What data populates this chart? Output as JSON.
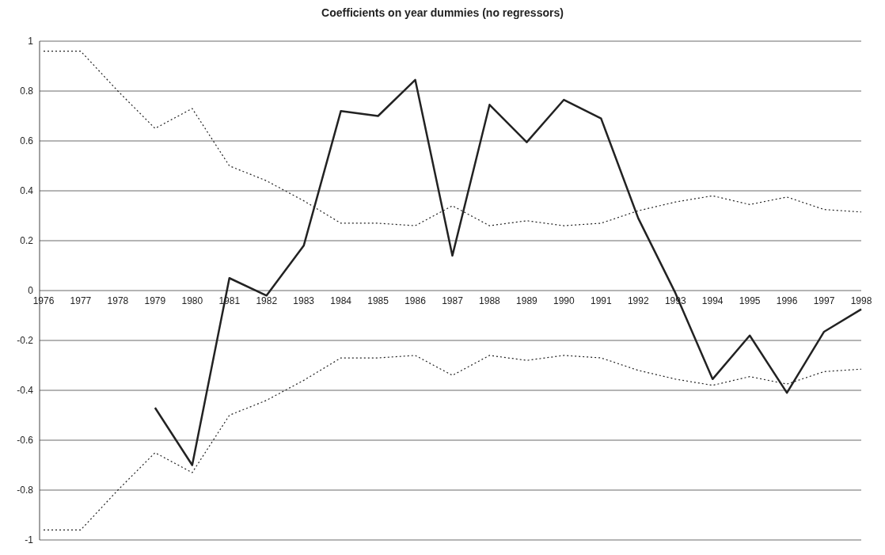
{
  "chart_data": {
    "type": "line",
    "title": "Coefficients on year dummies (no regressors)",
    "categories": [
      "1976",
      "1977",
      "1978",
      "1979",
      "1980",
      "1981",
      "1982",
      "1983",
      "1984",
      "1985",
      "1986",
      "1987",
      "1988",
      "1989",
      "1990",
      "1991",
      "1992",
      "1993",
      "1994",
      "1995",
      "1996",
      "1997",
      "1998"
    ],
    "series": [
      {
        "color": "#222222",
        "line_style": "dotted",
        "values": [
          0.96,
          0.96,
          0.8,
          0.65,
          0.73,
          0.5,
          0.44,
          0.36,
          0.27,
          0.27,
          0.26,
          0.34,
          0.26,
          0.28,
          0.26,
          0.27,
          0.32,
          0.355,
          0.38,
          0.345,
          0.375,
          0.325,
          0.315
        ]
      },
      {
        "color": "#222222",
        "line_style": "solid",
        "values": [
          null,
          null,
          null,
          -0.47,
          -0.7,
          0.05,
          -0.02,
          0.18,
          0.72,
          0.7,
          0.845,
          0.14,
          0.745,
          0.595,
          0.765,
          0.69,
          0.29,
          -0.01,
          -0.355,
          -0.18,
          -0.41,
          -0.165,
          -0.075
        ]
      },
      {
        "color": "#222222",
        "line_style": "dotted",
        "values": [
          -0.96,
          -0.96,
          -0.8,
          -0.65,
          -0.73,
          -0.5,
          -0.44,
          -0.36,
          -0.27,
          -0.27,
          -0.26,
          -0.34,
          -0.26,
          -0.28,
          -0.26,
          -0.27,
          -0.32,
          -0.355,
          -0.38,
          -0.345,
          -0.375,
          -0.325,
          -0.315
        ]
      }
    ],
    "ylim": [
      -1,
      1
    ],
    "yticks": [
      -1,
      -0.8,
      -0.6,
      -0.4,
      -0.2,
      0,
      0.2,
      0.4,
      0.6,
      0.8,
      1
    ],
    "grid": "y",
    "marker": "none"
  }
}
